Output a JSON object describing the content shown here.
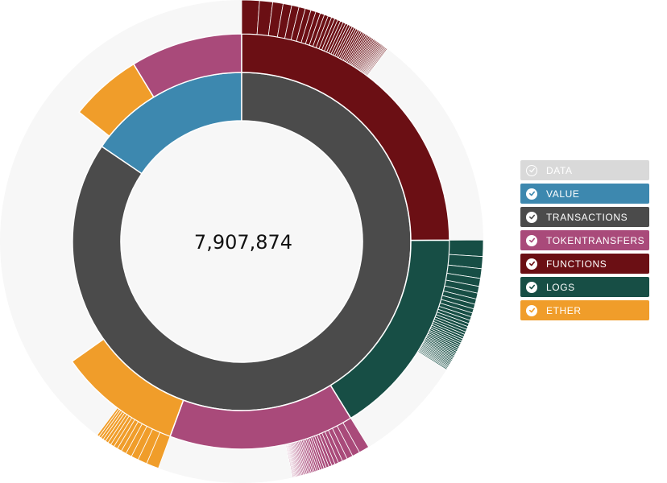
{
  "chart_data": {
    "type": "sunburst",
    "total": "7,907,874",
    "background_ring_color": "#f7f7f7",
    "inner_ring": [
      {
        "name": "VALUE",
        "color": "#3d88af",
        "fraction": 0.155
      },
      {
        "name": "TRANSACTIONS",
        "color": "#4b4b4b",
        "fraction": 0.845
      }
    ],
    "outer_ring": [
      {
        "name": "ETHER",
        "color": "#f09d2a",
        "fraction": 0.056
      },
      {
        "name": "TOKENTRANSFERS",
        "color": "#a94a7a",
        "fraction": 0.087
      },
      {
        "name": "FUNCTIONS",
        "color": "#6b0f14",
        "fraction": 0.249
      },
      {
        "name": "LOGS",
        "color": "#174e45",
        "fraction": 0.163
      },
      {
        "name": "TOKENTRANSFERS",
        "color": "#a94a7a",
        "fraction": 0.144
      },
      {
        "name": "ETHER",
        "color": "#f09d2a",
        "fraction": 0.096
      }
    ],
    "detail_ring": [
      {
        "name": "DATA",
        "parent": "FUNCTIONS",
        "color": "#6b0f14",
        "fraction": 0.103,
        "slices": 48
      },
      {
        "name": "DATA",
        "parent": "LOGS",
        "color": "#174e45",
        "fraction": 0.09,
        "slices": 40
      },
      {
        "name": "DATA",
        "parent": "TOKENTRANSFERS",
        "color": "#a94a7a",
        "fraction": 0.054,
        "slices": 34
      },
      {
        "name": "DATA",
        "parent": "ETHER",
        "color": "#f09d2a",
        "fraction": 0.046,
        "slices": 14
      }
    ]
  },
  "legend": {
    "items": [
      {
        "label": "DATA",
        "color": "#d9d9d9",
        "enabled": false
      },
      {
        "label": "VALUE",
        "color": "#3d88af",
        "enabled": true
      },
      {
        "label": "TRANSACTIONS",
        "color": "#4b4b4b",
        "enabled": true
      },
      {
        "label": "TOKENTRANSFERS",
        "color": "#a94a7a",
        "enabled": true
      },
      {
        "label": "FUNCTIONS",
        "color": "#6b0f14",
        "enabled": true
      },
      {
        "label": "LOGS",
        "color": "#174e45",
        "enabled": true
      },
      {
        "label": "ETHER",
        "color": "#f09d2a",
        "enabled": true
      }
    ]
  }
}
